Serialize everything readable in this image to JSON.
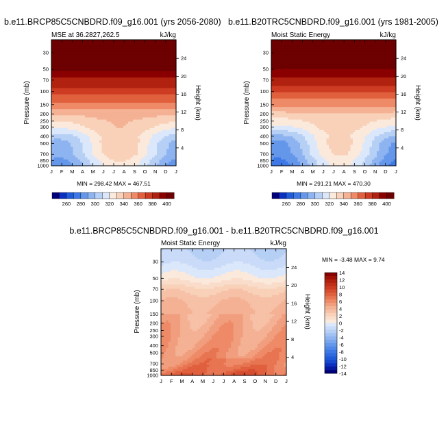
{
  "chart_data": [
    {
      "type": "heatmap",
      "id": "p1",
      "title": "b.e11.BRCP85C5CNBDRD.f09_g16.001 (yrs 2056-2080)",
      "subtitle_left": "MSE at 36.2827,262.5",
      "subtitle_right": "kJ/kg",
      "xlabel": "",
      "ylabel": "Pressure (mb)",
      "ylabel_right": "Height (km)",
      "x_ticks": [
        "J",
        "F",
        "M",
        "A",
        "M",
        "J",
        "J",
        "A",
        "S",
        "O",
        "N",
        "D",
        "J"
      ],
      "pressure_ticks": [
        30,
        50,
        70,
        100,
        150,
        200,
        250,
        300,
        400,
        500,
        700,
        850,
        1000
      ],
      "height_ticks": [
        24,
        20,
        16,
        12,
        8,
        4
      ],
      "ylim": [
        1000,
        20
      ],
      "stats": "MIN = 298.42   MAX = 467.51",
      "profile_by_pressure": [
        {
          "p": 20,
          "v": 410
        },
        {
          "p": 50,
          "v": 402
        },
        {
          "p": 70,
          "v": 388
        },
        {
          "p": 100,
          "v": 375
        },
        {
          "p": 150,
          "v": 356
        },
        {
          "p": 200,
          "v": 343
        },
        {
          "p": 250,
          "v": 335
        },
        {
          "p": 300,
          "v": 330
        },
        {
          "p": 400,
          "v": 318
        },
        {
          "p": 500,
          "v": 314
        },
        {
          "p": 700,
          "v": 312
        },
        {
          "p": 850,
          "v": 306
        },
        {
          "p": 1000,
          "v": 302
        }
      ],
      "seasonal_amplitude": 22,
      "palette": "cold_to_warm"
    },
    {
      "type": "heatmap",
      "id": "p2",
      "title": "b.e11.B20TRC5CNBDRD.f09_g16.001 (yrs 1981-2005)",
      "subtitle_left": "Moist Static Energy",
      "subtitle_right": "kJ/kg",
      "xlabel": "",
      "ylabel": "Pressure (mb)",
      "ylabel_right": "Height (km)",
      "x_ticks": [
        "J",
        "F",
        "M",
        "A",
        "M",
        "J",
        "J",
        "A",
        "S",
        "O",
        "N",
        "D",
        "J"
      ],
      "pressure_ticks": [
        30,
        50,
        70,
        100,
        150,
        200,
        250,
        300,
        400,
        500,
        700,
        850,
        1000
      ],
      "height_ticks": [
        24,
        20,
        16,
        12,
        8,
        4
      ],
      "ylim": [
        1000,
        20
      ],
      "stats": "MIN = 291.21   MAX = 470.30",
      "profile_by_pressure": [
        {
          "p": 20,
          "v": 410
        },
        {
          "p": 50,
          "v": 401
        },
        {
          "p": 70,
          "v": 386
        },
        {
          "p": 100,
          "v": 372
        },
        {
          "p": 150,
          "v": 352
        },
        {
          "p": 200,
          "v": 338
        },
        {
          "p": 250,
          "v": 330
        },
        {
          "p": 300,
          "v": 325
        },
        {
          "p": 400,
          "v": 312
        },
        {
          "p": 500,
          "v": 307
        },
        {
          "p": 700,
          "v": 304
        },
        {
          "p": 850,
          "v": 298
        },
        {
          "p": 1000,
          "v": 295
        }
      ],
      "seasonal_amplitude": 24,
      "palette": "cold_to_warm"
    },
    {
      "type": "heatmap",
      "id": "p3",
      "title": "b.e11.BRCP85C5CNBDRD.f09_g16.001 - b.e11.B20TRC5CNBDRD.f09_g16.001",
      "subtitle_left": "Moist Static Energy",
      "subtitle_right": "kJ/kg",
      "xlabel": "",
      "ylabel": "Pressure (mb)",
      "ylabel_right": "Height (km)",
      "x_ticks": [
        "J",
        "F",
        "M",
        "A",
        "M",
        "J",
        "J",
        "A",
        "S",
        "O",
        "N",
        "D",
        "J"
      ],
      "pressure_ticks": [
        30,
        50,
        70,
        100,
        150,
        200,
        250,
        300,
        400,
        500,
        700,
        850,
        1000
      ],
      "height_ticks": [
        24,
        20,
        16,
        12,
        8,
        4
      ],
      "ylim": [
        1000,
        20
      ],
      "stats": "MIN = -3.48   MAX =  9.74",
      "profile_by_pressure": [
        {
          "p": 20,
          "v": -2.2
        },
        {
          "p": 30,
          "v": -1.5
        },
        {
          "p": 50,
          "v": 0.4
        },
        {
          "p": 70,
          "v": 2.6
        },
        {
          "p": 100,
          "v": 3.9
        },
        {
          "p": 150,
          "v": 4.4
        },
        {
          "p": 200,
          "v": 4.9
        },
        {
          "p": 300,
          "v": 5.4
        },
        {
          "p": 500,
          "v": 6.0
        },
        {
          "p": 700,
          "v": 6.6
        },
        {
          "p": 850,
          "v": 7.4
        },
        {
          "p": 1000,
          "v": 8.2
        }
      ],
      "seasonal_amplitude": 1.2,
      "palette": "diff"
    }
  ],
  "colorbars": {
    "absolute": {
      "labels": [
        "260",
        "280",
        "300",
        "320",
        "340",
        "360",
        "380",
        "400"
      ],
      "levels": [
        250,
        260,
        270,
        280,
        290,
        300,
        310,
        320,
        330,
        340,
        350,
        360,
        370,
        380,
        390,
        400
      ],
      "colors": [
        "#00007a",
        "#0b2fbf",
        "#1f5ad8",
        "#3d78e6",
        "#6497ea",
        "#8db3f0",
        "#b6cff5",
        "#dbe7fa",
        "#fbe9dc",
        "#f8d1b8",
        "#f4b194",
        "#ee8a67",
        "#e0603e",
        "#cc3b22",
        "#b0220f",
        "#8a0000",
        "#6d0000"
      ]
    },
    "difference": {
      "labels": [
        "14",
        "12",
        "10",
        "8",
        "6",
        "4",
        "2",
        "0",
        "-2",
        "-4",
        "-6",
        "-8",
        "-10",
        "-12",
        "-14"
      ],
      "levels": [
        -14,
        -13,
        -12,
        -11,
        -10,
        -9,
        -8,
        -7,
        -6,
        -5,
        -4,
        -3,
        -2,
        -1,
        0,
        1,
        2,
        3,
        4,
        5,
        6,
        7,
        8,
        9,
        10,
        11,
        12,
        13,
        14
      ],
      "colors": [
        "#00007a",
        "#0617a0",
        "#0b2fbf",
        "#1547cf",
        "#1f5ad8",
        "#2f69df",
        "#3d78e6",
        "#5188e8",
        "#6497ea",
        "#79a5ed",
        "#8db3f0",
        "#a2c1f3",
        "#b6cff5",
        "#c9dbf8",
        "#dbe7fa",
        "#fbe9dc",
        "#f9ddca",
        "#f8d1b8",
        "#f6c1a6",
        "#f4b194",
        "#f19e7e",
        "#ee8a67",
        "#e77552",
        "#e0603e",
        "#d64e30",
        "#cc3b22",
        "#be2e18",
        "#b0220f",
        "#9d1107",
        "#8a0000"
      ]
    }
  }
}
